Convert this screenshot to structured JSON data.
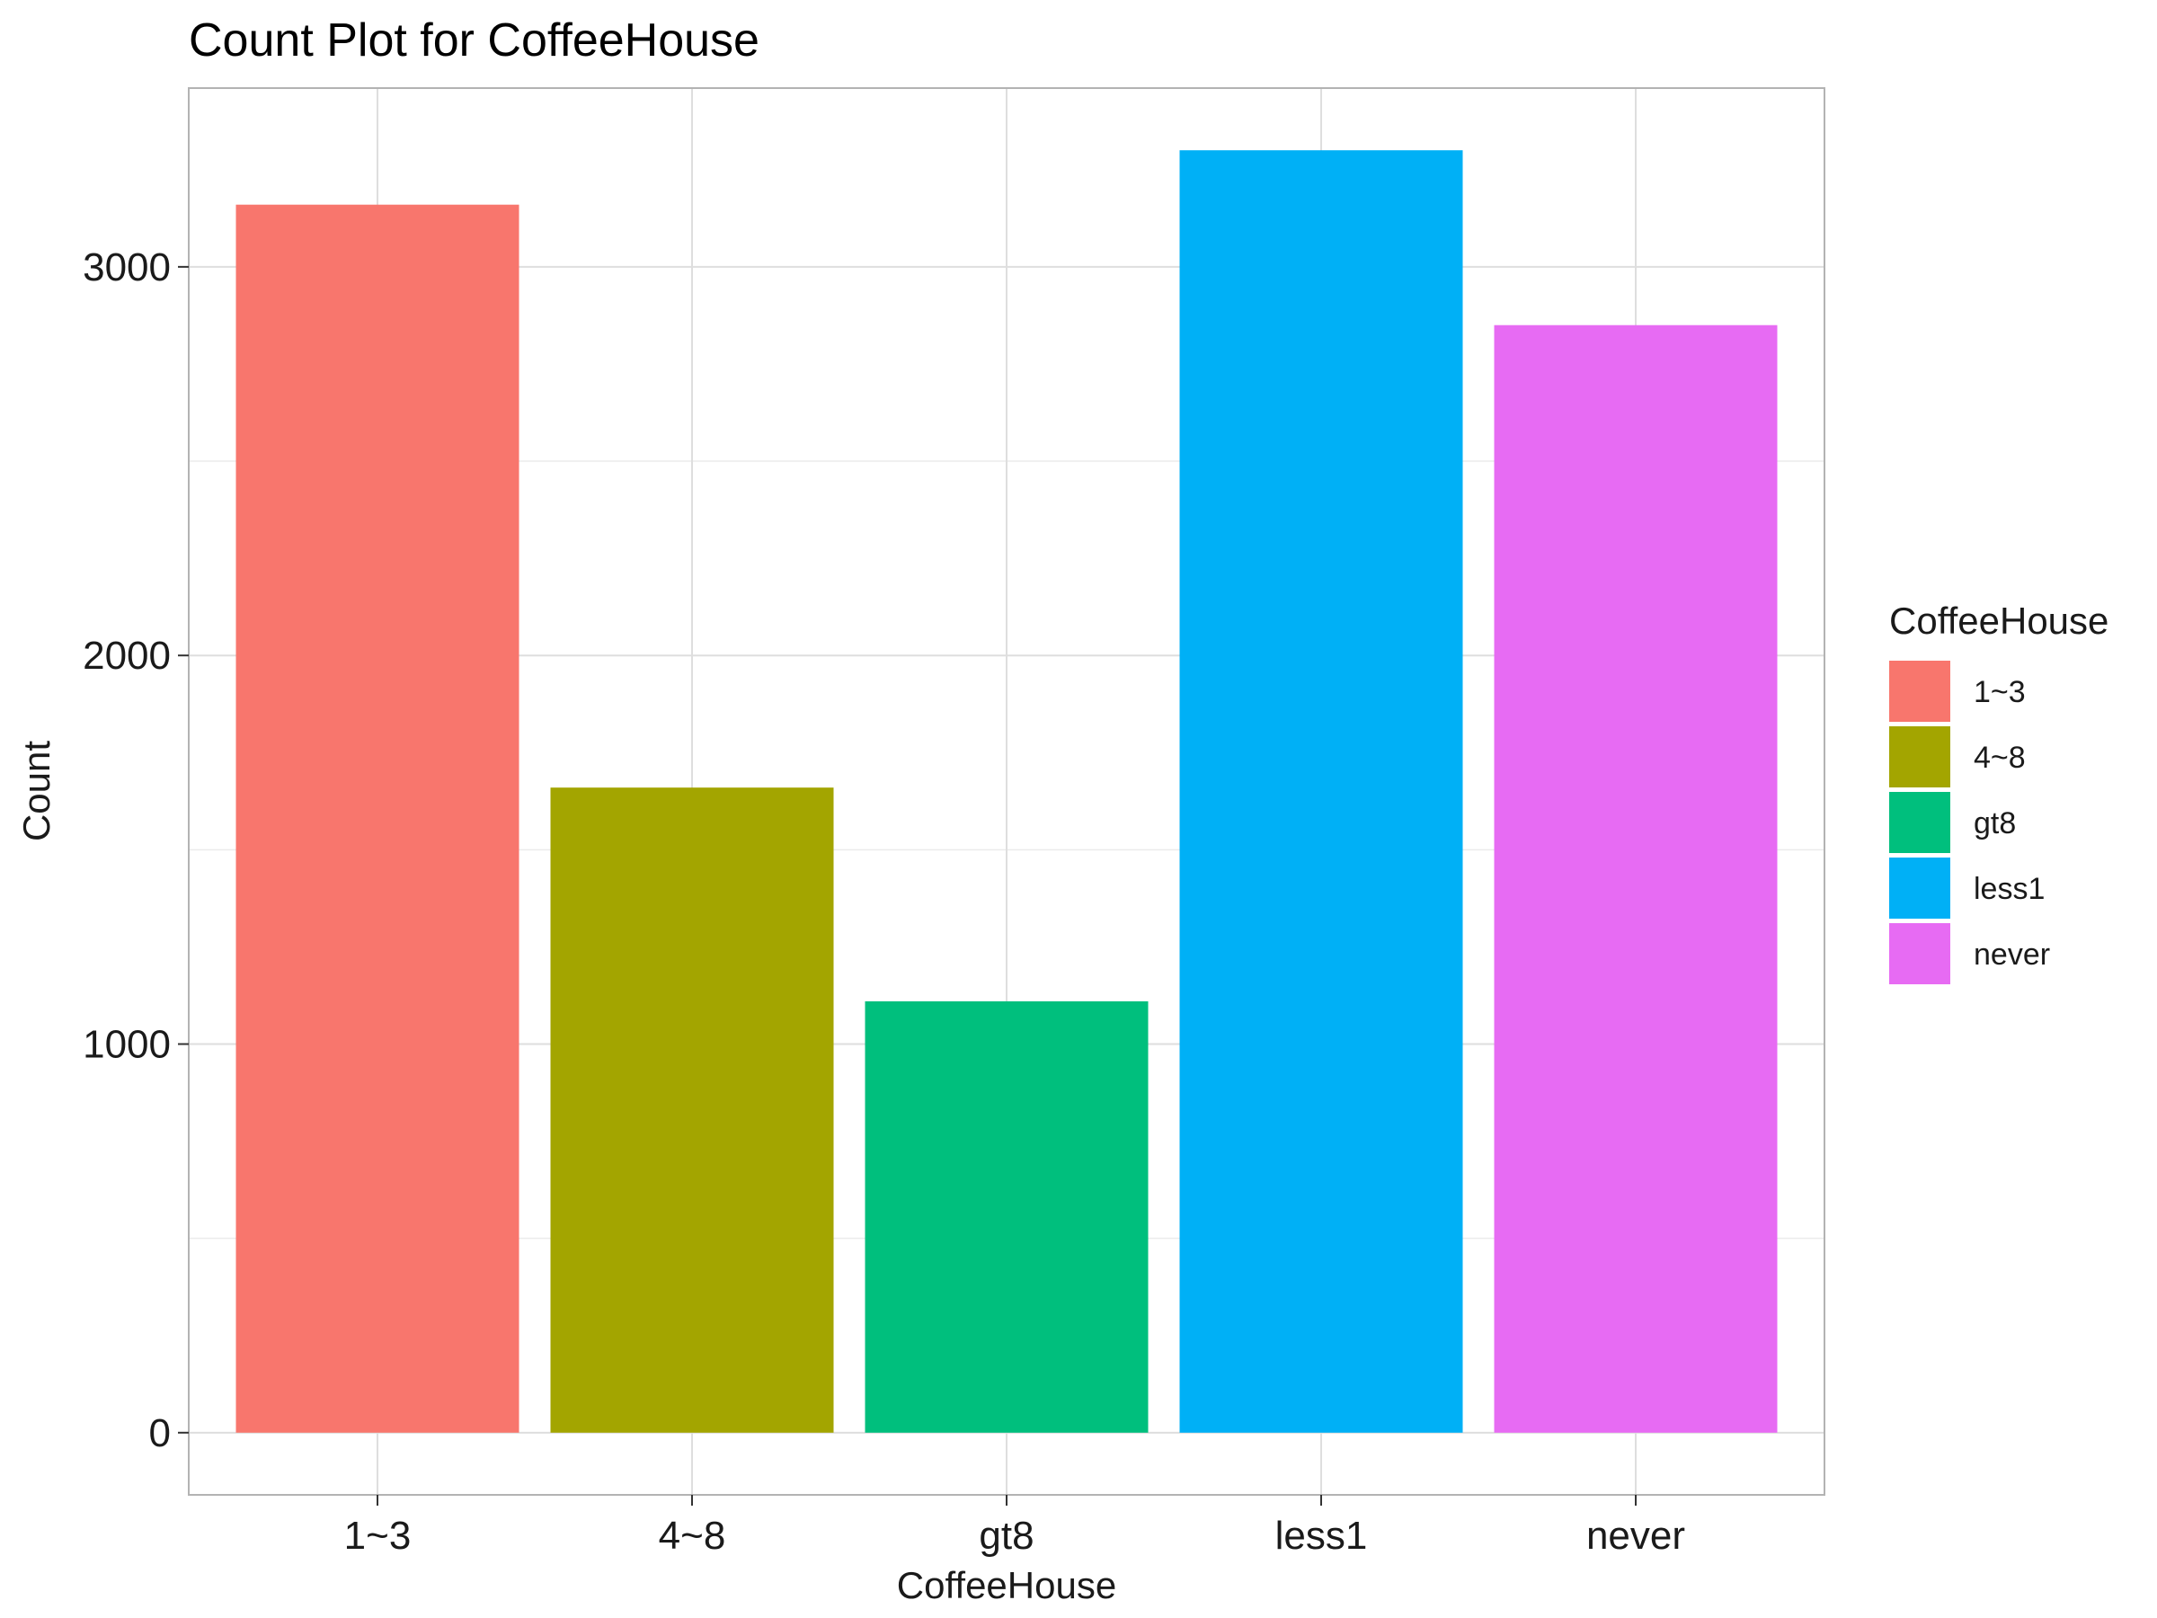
{
  "chart_data": {
    "type": "bar",
    "title": "Count Plot for CoffeeHouse",
    "xlabel": "CoffeeHouse",
    "ylabel": "Count",
    "categories": [
      "1~3",
      "4~8",
      "gt8",
      "less1",
      "never"
    ],
    "values": [
      3160,
      1660,
      1110,
      3300,
      2850
    ],
    "colors": [
      "#F8766D",
      "#A3A500",
      "#00BF7D",
      "#00B0F6",
      "#E76BF3"
    ],
    "ylim": [
      -160,
      3460
    ],
    "yticks": [
      0,
      1000,
      2000,
      3000
    ],
    "ytick_labels": [
      "0",
      "1000",
      "2000",
      "3000"
    ],
    "grid": true,
    "legend": {
      "title": "CoffeeHouse",
      "position": "right",
      "entries": [
        "1~3",
        "4~8",
        "gt8",
        "less1",
        "never"
      ]
    }
  }
}
